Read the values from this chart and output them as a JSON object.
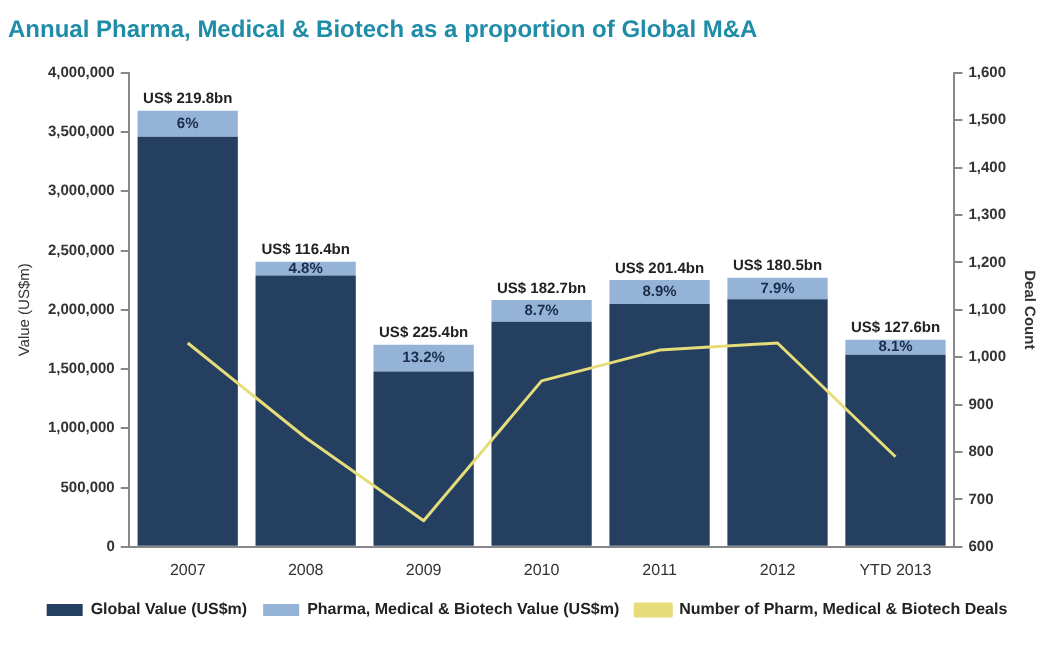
{
  "chart_data": {
    "type": "bar",
    "stacked": true,
    "title": "Annual Pharma, Medical & Biotech as a proportion of Global M&A",
    "ylabel": "Value (US$m)",
    "y2label": "Deal Count",
    "categories": [
      "2007",
      "2008",
      "2009",
      "2010",
      "2011",
      "2012",
      "YTD 2013"
    ],
    "series": [
      {
        "name": "Global Value (US$m)",
        "color": "#243f60",
        "values": [
          3460000,
          2290000,
          1480000,
          1900000,
          2050000,
          2090000,
          1620000
        ]
      },
      {
        "name": "Pharma, Medical & Biotech Value (US$m)",
        "color": "#95b3d7",
        "values": [
          219800,
          116400,
          225400,
          182700,
          201400,
          180500,
          127600
        ],
        "value_labels": [
          "US$ 219.8bn",
          "US$ 116.4bn",
          "US$ 225.4bn",
          "US$ 182.7bn",
          "US$ 201.4bn",
          "US$ 180.5bn",
          "US$ 127.6bn"
        ]
      },
      {
        "name": "Number of Pharm, Medical & Biotech Deals",
        "type": "line",
        "axis": "y2",
        "color": "#e6dc7a",
        "values": [
          1030,
          830,
          655,
          950,
          1015,
          1030,
          790
        ]
      }
    ],
    "annotations": [
      "6%",
      "4.8%",
      "13.2%",
      "8.7%",
      "8.9%",
      "7.9%",
      "8.1%"
    ],
    "ylim": [
      0,
      4000000
    ],
    "yticks": [
      0,
      {
        "value": 500000,
        "label": "500,000"
      },
      {
        "value": 1000000,
        "label": "1,000,000"
      },
      {
        "value": 1500000,
        "label": "1,500,000"
      },
      {
        "value": 2000000,
        "label": "2,000,000"
      },
      {
        "value": 2500000,
        "label": "2,500,000"
      },
      {
        "value": 3000000,
        "label": "3,000,000"
      },
      {
        "value": 3500000,
        "label": "3,500,000"
      },
      {
        "value": 4000000,
        "label": "4,000,000"
      }
    ],
    "y2lim": [
      600,
      1600
    ],
    "y2ticks": [
      600,
      700,
      800,
      900,
      {
        "value": 1000,
        "label": "1,000"
      },
      {
        "value": 1100,
        "label": "1,100"
      },
      {
        "value": 1200,
        "label": "1,200"
      },
      {
        "value": 1300,
        "label": "1,300"
      },
      {
        "value": 1400,
        "label": "1,400"
      },
      {
        "value": 1500,
        "label": "1,500"
      },
      {
        "value": 1600,
        "label": "1,600"
      }
    ],
    "grid": false,
    "legend": "bottom",
    "marker": "none",
    "line_style": "solid"
  }
}
